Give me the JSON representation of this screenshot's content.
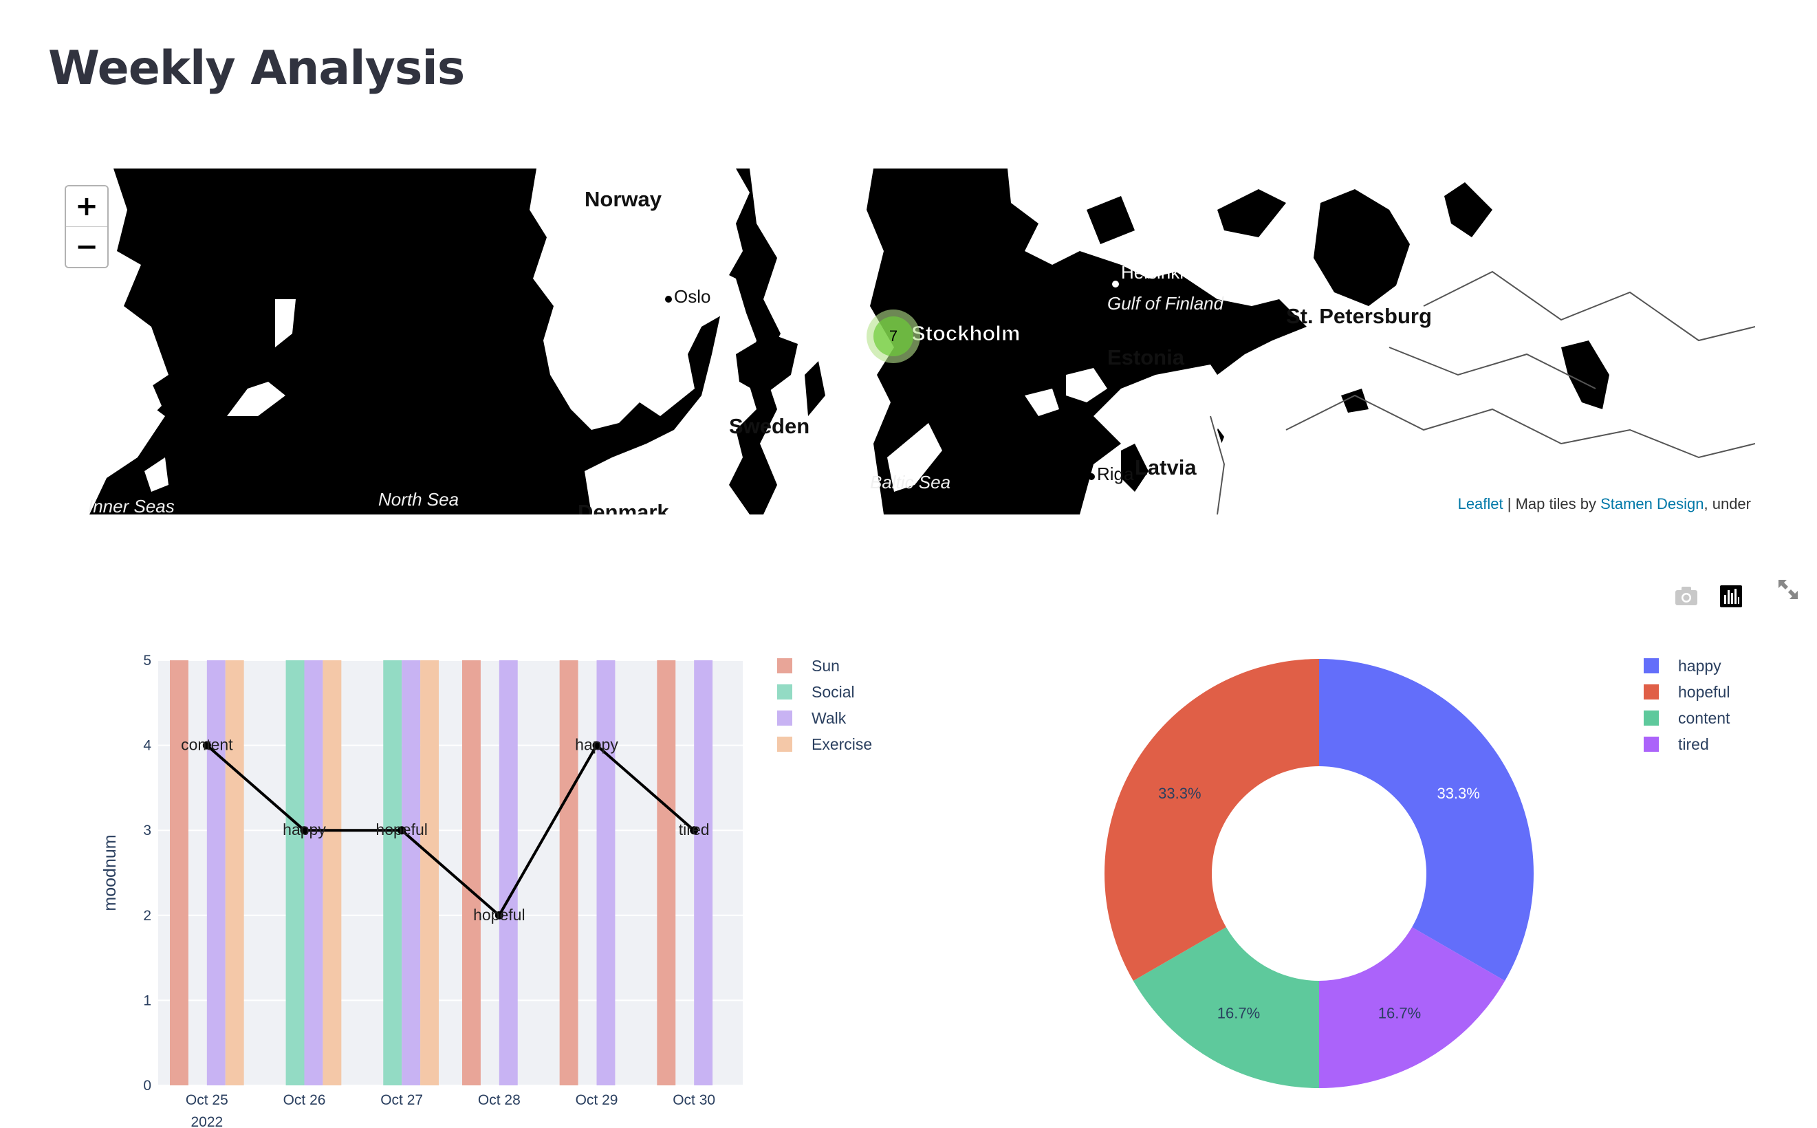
{
  "page": {
    "title": "Weekly Analysis"
  },
  "map": {
    "zoom_in_label": "+",
    "zoom_out_label": "−",
    "cluster_count": "7",
    "labels": {
      "norway": "Norway",
      "oslo": "Oslo",
      "sweden": "Sweden",
      "stockholm": "Stockholm",
      "helsinki": "Helsinki",
      "gulf": "Gulf of Finland",
      "st_petersburg": "St. Petersburg",
      "estonia": "Estonia",
      "latvia": "Latvia",
      "riga": "Riga",
      "baltic": "Baltic Sea",
      "north_sea": "North Sea",
      "inner_seas": "Inner Seas",
      "denmark": "Denmark"
    },
    "attribution": {
      "leaflet": "Leaflet",
      "sep": " | Map tiles by ",
      "stamen": "Stamen Design",
      "rest": ", under"
    },
    "colors": {
      "land": "#ffffff",
      "water": "#000000",
      "cluster_outer": "#b5e28c",
      "cluster_inner": "#6ecc39"
    }
  },
  "toolbar": {
    "icons": [
      "camera-icon",
      "bar-chart-icon",
      "fullscreen-icon"
    ]
  },
  "chart_data": [
    {
      "type": "bar",
      "categories": [
        "Oct 25",
        "Oct 26",
        "Oct 27",
        "Oct 28",
        "Oct 29",
        "Oct 30"
      ],
      "x_sublabel": "2022",
      "ylabel": "moodnum",
      "ylim": [
        0,
        5
      ],
      "yticks": [
        "0",
        "1",
        "2",
        "3",
        "4",
        "5"
      ],
      "legend": "right",
      "grid": true,
      "series": [
        {
          "name": "Sun",
          "color": "#e8a598",
          "values": [
            5,
            0,
            0,
            5,
            5,
            5
          ]
        },
        {
          "name": "Social",
          "color": "#93dbc4",
          "values": [
            0,
            5,
            5,
            0,
            0,
            0
          ]
        },
        {
          "name": "Walk",
          "color": "#c8b3f3",
          "values": [
            5,
            5,
            5,
            5,
            5,
            5
          ]
        },
        {
          "name": "Exercise",
          "color": "#f4c8a8",
          "values": [
            5,
            5,
            5,
            0,
            0,
            0
          ]
        }
      ],
      "line": {
        "values": [
          4,
          3,
          3,
          2,
          4,
          3
        ],
        "labels": [
          "content",
          "happy",
          "hopeful",
          "hopeful",
          "happy",
          "tired"
        ],
        "color": "#000000"
      }
    },
    {
      "type": "pie",
      "hole": 0.5,
      "legend": "right",
      "slices": [
        {
          "label": "happy",
          "value": 2,
          "pct_text": "33.3%",
          "color": "#636efa"
        },
        {
          "label": "tired",
          "value": 1,
          "pct_text": "16.7%",
          "color": "#ab63fa"
        },
        {
          "label": "content",
          "value": 1,
          "pct_text": "16.7%",
          "color": "#5ec99c"
        },
        {
          "label": "hopeful",
          "value": 2,
          "pct_text": "33.3%",
          "color": "#e05f47"
        }
      ],
      "legend_order": [
        "happy",
        "hopeful",
        "content",
        "tired"
      ]
    }
  ]
}
